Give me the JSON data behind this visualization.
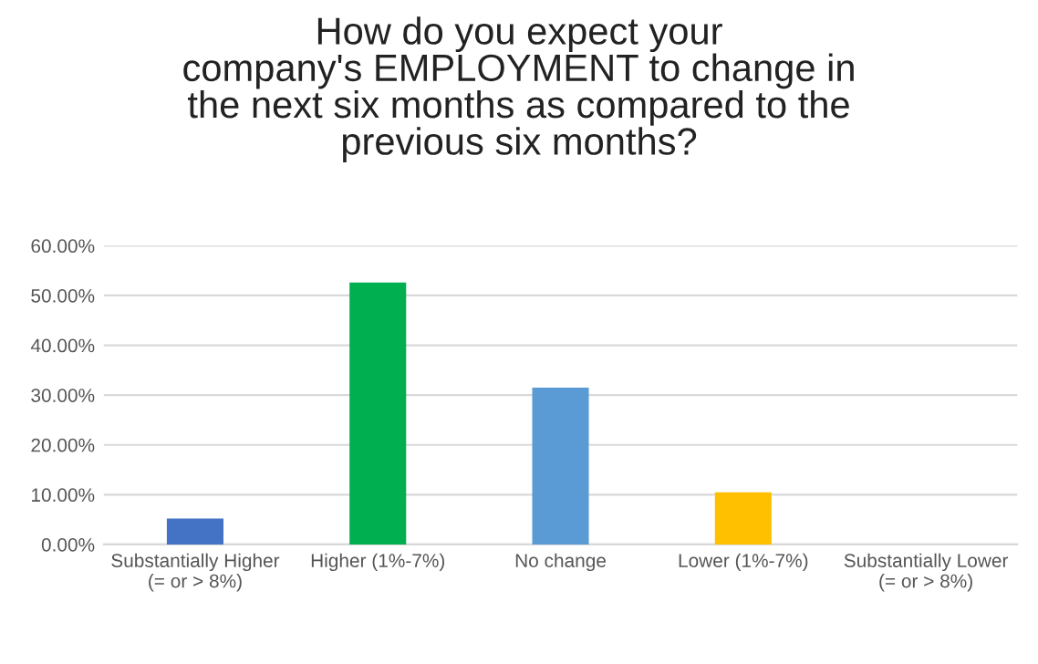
{
  "chart_data": {
    "type": "bar",
    "title": "How do you expect your\ncompany's EMPLOYMENT to change in\nthe next six months as compared to the\nprevious six months?",
    "categories": [
      "Substantially Higher\n(= or > 8%)",
      "Higher (1%-7%)",
      "No change",
      "Lower (1%-7%)",
      "Substantially Lower\n(= or > 8%)"
    ],
    "values": [
      5.2,
      52.6,
      31.5,
      10.5,
      0
    ],
    "colors": [
      "#4472c4",
      "#00b050",
      "#5b9bd5",
      "#ffc000",
      "#a5a5a5"
    ],
    "ylim": [
      0,
      60
    ],
    "yticks": [
      {
        "value": 0,
        "label": "0.00%"
      },
      {
        "value": 10,
        "label": "10.00%"
      },
      {
        "value": 20,
        "label": "20.00%"
      },
      {
        "value": 30,
        "label": "30.00%"
      },
      {
        "value": 40,
        "label": "40.00%"
      },
      {
        "value": 50,
        "label": "50.00%"
      },
      {
        "value": 60,
        "label": "60.00%"
      }
    ],
    "grid": "y"
  }
}
